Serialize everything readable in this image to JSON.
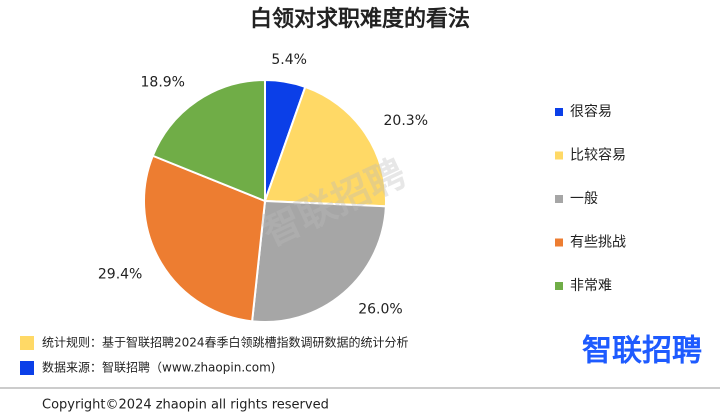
{
  "chart_data": {
    "type": "pie",
    "title": "白领对求职难度的看法",
    "categories": [
      "很容易",
      "比较容易",
      "一般",
      "有些挑战",
      "非常难"
    ],
    "values": [
      5.4,
      20.3,
      26.0,
      29.4,
      18.9
    ],
    "value_labels": [
      "5.4%",
      "20.3%",
      "26.0%",
      "29.4%",
      "18.9%"
    ],
    "colors": [
      "#0b3fe8",
      "#ffd966",
      "#a6a6a6",
      "#ed7d31",
      "#70ad47"
    ],
    "legend": "right"
  },
  "watermark": "智联招聘",
  "notes": [
    "统计规则：基于智联招聘2024春季白领跳槽指数调研数据的统计分析",
    "数据来源：智联招聘（www.zhaopin.com)"
  ],
  "logo": "智联招聘",
  "copyright": "Copyright©2024 zhaopin all rights reserved"
}
